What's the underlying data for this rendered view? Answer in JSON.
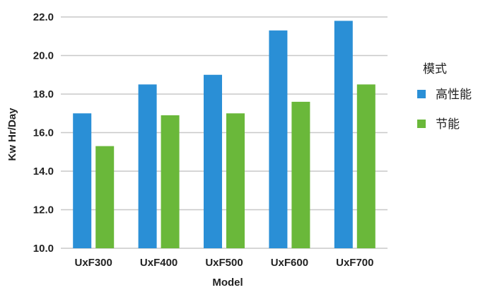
{
  "chart_data": {
    "type": "bar",
    "categories": [
      "UxF300",
      "UxF400",
      "UxF500",
      "UxF600",
      "UxF700"
    ],
    "series": [
      {
        "name": "高性能",
        "values": [
          17.0,
          18.5,
          19.0,
          21.3,
          21.8
        ],
        "color": "#2a8fd6"
      },
      {
        "name": "节能",
        "values": [
          15.3,
          16.9,
          17.0,
          17.6,
          18.5
        ],
        "color": "#6ab83a"
      }
    ],
    "yticks": [
      "10.0",
      "12.0",
      "14.0",
      "16.0",
      "18.0",
      "20.0",
      "22.0"
    ],
    "ylim": [
      10,
      22
    ],
    "xlabel": "Model",
    "ylabel": "Kw Hr/Day",
    "legend_title": "模式",
    "legend_position": "right",
    "grid": true
  }
}
